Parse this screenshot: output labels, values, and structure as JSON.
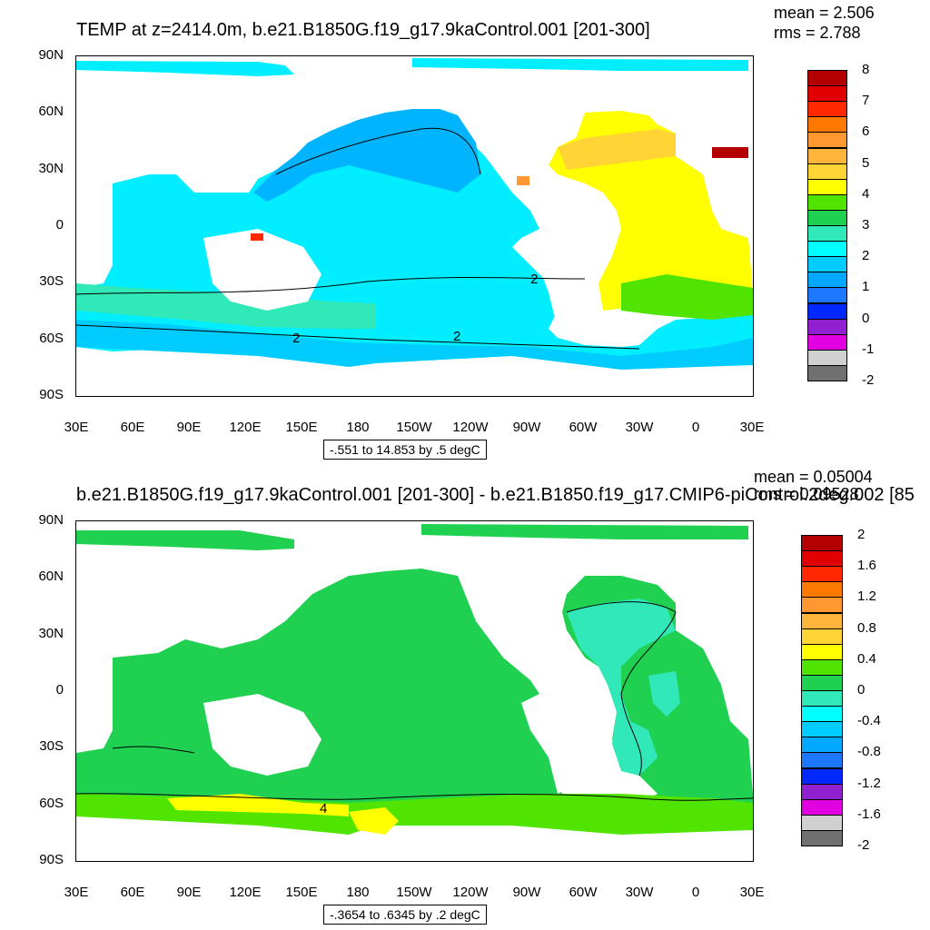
{
  "top": {
    "title": "TEMP at z=2414.0m, b.e21.B1850G.f19_g17.9kaControl.001 [201-300]",
    "mean": "mean = 2.506",
    "rms": "rms = 2.788",
    "range": "-.551 to 14.853 by .5 degC",
    "lat_ticks": [
      "90N",
      "60N",
      "30N",
      "0",
      "30S",
      "60S",
      "90S"
    ],
    "lon_ticks": [
      "30E",
      "60E",
      "90E",
      "120E",
      "150E",
      "180",
      "150W",
      "120W",
      "90W",
      "60W",
      "30W",
      "0",
      "30E"
    ],
    "colorbar_labels": [
      "8",
      "7",
      "6",
      "5",
      "4",
      "3",
      "2",
      "1",
      "0",
      "-1",
      "-2"
    ],
    "colorbar_colors": [
      "#b40000",
      "#e00000",
      "#ff2800",
      "#ff7800",
      "#ff9830",
      "#ffb43c",
      "#ffd434",
      "#ffff00",
      "#50e400",
      "#20d050",
      "#30e8b8",
      "#00ffff",
      "#00ccff",
      "#00a8ff",
      "#1e78ff",
      "#0028ff",
      "#9020d0",
      "#e000e0",
      "#d0d0d0",
      "#707070"
    ],
    "contour_labels": [
      "2",
      "2",
      "2"
    ]
  },
  "bottom": {
    "title": "b.e21.B1850G.f19_g17.9kaControl.001 [201-300] - b.e21.B1850.f19_g17.CMIP6-piControl.2deg.002 [85",
    "mean": "mean = 0.05004",
    "rms": "rms = 0.09528",
    "range": "-.3654 to .6345 by .2 degC",
    "lat_ticks": [
      "90N",
      "60N",
      "30N",
      "0",
      "30S",
      "60S",
      "90S"
    ],
    "lon_ticks": [
      "30E",
      "60E",
      "90E",
      "120E",
      "150E",
      "180",
      "150W",
      "120W",
      "90W",
      "60W",
      "30W",
      "0",
      "30E"
    ],
    "colorbar_labels": [
      "2",
      "1.6",
      "1.2",
      "0.8",
      "0.4",
      "0",
      "-0.4",
      "-0.8",
      "-1.2",
      "-1.6",
      "-2"
    ],
    "colorbar_colors": [
      "#b40000",
      "#e00000",
      "#ff2800",
      "#ff7800",
      "#ff9830",
      "#ffb43c",
      "#ffd434",
      "#ffff00",
      "#50e400",
      "#20d050",
      "#30e8b8",
      "#00ffff",
      "#00ccff",
      "#00a8ff",
      "#1e78ff",
      "#0028ff",
      "#9020d0",
      "#e000e0",
      "#d0d0d0",
      "#707070"
    ],
    "contour_labels": [
      "4"
    ]
  }
}
